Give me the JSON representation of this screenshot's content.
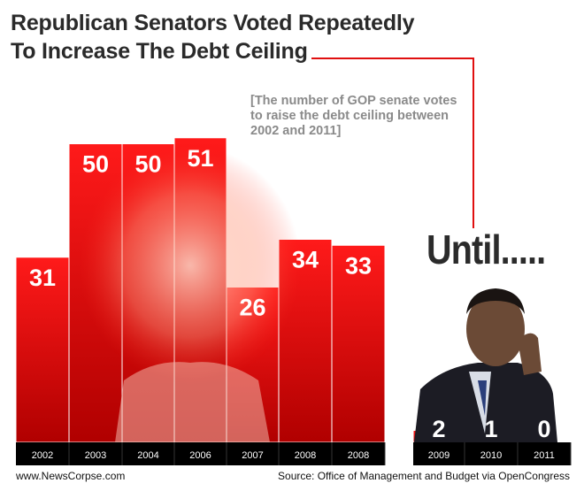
{
  "title_line1": "Republican Senators Voted Repeatedly",
  "title_line2": "To Increase The Debt Ceiling",
  "subtitle": "[The number of GOP senate votes to raise the debt ceiling between 2002 and 2011]",
  "annotation": "Until.....",
  "footer": {
    "website": "www.NewsCorpse.com",
    "source": "Source: Office of Management and Budget via OpenCongress"
  },
  "colors": {
    "bar_top": "#ff1a1a",
    "bar_bottom": "#b00000",
    "axis_band": "#000000",
    "value_label": "#ffffff",
    "connector": "#e01010"
  },
  "chart_data": {
    "type": "bar",
    "title": "Republican Senators Voted Repeatedly To Increase The Debt Ceiling",
    "subtitle": "[The number of GOP senate votes to raise the debt ceiling between 2002 and 2011]",
    "xlabel": "",
    "ylabel": "",
    "categories": [
      "2002",
      "2003",
      "2004",
      "2006",
      "2007",
      "2008",
      "2008",
      "2009",
      "2010",
      "2011"
    ],
    "values": [
      31,
      50,
      50,
      51,
      26,
      34,
      33,
      2,
      1,
      0
    ],
    "ylim": [
      0,
      55
    ],
    "grid": false,
    "legend": "none"
  }
}
